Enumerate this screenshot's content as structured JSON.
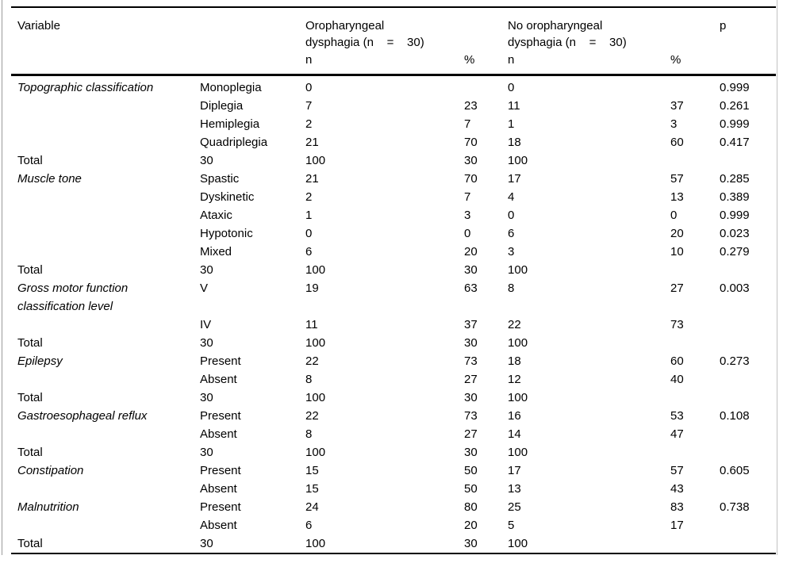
{
  "table": {
    "header": {
      "variable": "Variable",
      "group1": {
        "line1": "Oropharyngeal",
        "line2": "dysphagia (n    =    30)"
      },
      "group2": {
        "line1": "No oropharyngeal",
        "line2": "dysphagia (n    =    30)"
      },
      "p": "p",
      "sub": {
        "n1": "n",
        "pct1": "%",
        "n2": "n",
        "pct2": "%"
      }
    },
    "rows": [
      {
        "variable": "Topographic classification",
        "category": "Monoplegia",
        "n1": "0",
        "pct1": "",
        "n2": "0",
        "pct2": "",
        "p": "0.999"
      },
      {
        "variable": "",
        "category": "Diplegia",
        "n1": "7",
        "pct1": "23",
        "n2": "11",
        "pct2": "37",
        "p": "0.261"
      },
      {
        "variable": "",
        "category": "Hemiplegia",
        "n1": "2",
        "pct1": "7",
        "n2": "1",
        "pct2": "3",
        "p": "0.999"
      },
      {
        "variable": "",
        "category": "Quadriplegia",
        "n1": "21",
        "pct1": "70",
        "n2": "18",
        "pct2": "60",
        "p": "0.417"
      },
      {
        "variable": "Total",
        "category": "30",
        "n1": "100",
        "pct1": "30",
        "n2": "100",
        "pct2": "",
        "p": ""
      },
      {
        "variable": "Muscle tone",
        "category": "Spastic",
        "n1": "21",
        "pct1": "70",
        "n2": "17",
        "pct2": "57",
        "p": "0.285"
      },
      {
        "variable": "",
        "category": "Dyskinetic",
        "n1": "2",
        "pct1": "7",
        "n2": "4",
        "pct2": "13",
        "p": "0.389"
      },
      {
        "variable": "",
        "category": "Ataxic",
        "n1": "1",
        "pct1": "3",
        "n2": "0",
        "pct2": "0",
        "p": "0.999"
      },
      {
        "variable": "",
        "category": "Hypotonic",
        "n1": "0",
        "pct1": "0",
        "n2": "6",
        "pct2": "20",
        "p": "0.023"
      },
      {
        "variable": "",
        "category": "Mixed",
        "n1": "6",
        "pct1": "20",
        "n2": "3",
        "pct2": "10",
        "p": "0.279"
      },
      {
        "variable": "Total",
        "category": "30",
        "n1": "100",
        "pct1": "30",
        "n2": "100",
        "pct2": "",
        "p": ""
      },
      {
        "variable": "Gross motor function classification level",
        "category": "V",
        "n1": "19",
        "pct1": "63",
        "n2": "8",
        "pct2": "27",
        "p": "0.003"
      },
      {
        "variable": "",
        "category": "IV",
        "n1": "11",
        "pct1": "37",
        "n2": "22",
        "pct2": "73",
        "p": ""
      },
      {
        "variable": "Total",
        "category": "30",
        "n1": "100",
        "pct1": "30",
        "n2": "100",
        "pct2": "",
        "p": ""
      },
      {
        "variable": "Epilepsy",
        "category": "Present",
        "n1": "22",
        "pct1": "73",
        "n2": "18",
        "pct2": "60",
        "p": "0.273"
      },
      {
        "variable": "",
        "category": "Absent",
        "n1": "8",
        "pct1": "27",
        "n2": "12",
        "pct2": "40",
        "p": ""
      },
      {
        "variable": "Total",
        "category": "30",
        "n1": "100",
        "pct1": "30",
        "n2": "100",
        "pct2": "",
        "p": ""
      },
      {
        "variable": "Gastroesophageal reflux",
        "category": "Present",
        "n1": "22",
        "pct1": "73",
        "n2": "16",
        "pct2": "53",
        "p": "0.108"
      },
      {
        "variable": "",
        "category": "Absent",
        "n1": "8",
        "pct1": "27",
        "n2": "14",
        "pct2": "47",
        "p": ""
      },
      {
        "variable": "Total",
        "category": "30",
        "n1": "100",
        "pct1": "30",
        "n2": "100",
        "pct2": "",
        "p": ""
      },
      {
        "variable": "Constipation",
        "category": "Present",
        "n1": "15",
        "pct1": "50",
        "n2": "17",
        "pct2": "57",
        "p": "0.605"
      },
      {
        "variable": "",
        "category": "Absent",
        "n1": "15",
        "pct1": "50",
        "n2": "13",
        "pct2": "43",
        "p": ""
      },
      {
        "variable": "Malnutrition",
        "category": "Present",
        "n1": "24",
        "pct1": "80",
        "n2": "25",
        "pct2": "83",
        "p": "0.738"
      },
      {
        "variable": "",
        "category": "Absent",
        "n1": "6",
        "pct1": "20",
        "n2": "5",
        "pct2": "17",
        "p": ""
      },
      {
        "variable": "Total",
        "category": "30",
        "n1": "100",
        "pct1": "30",
        "n2": "100",
        "pct2": "",
        "p": ""
      }
    ]
  }
}
